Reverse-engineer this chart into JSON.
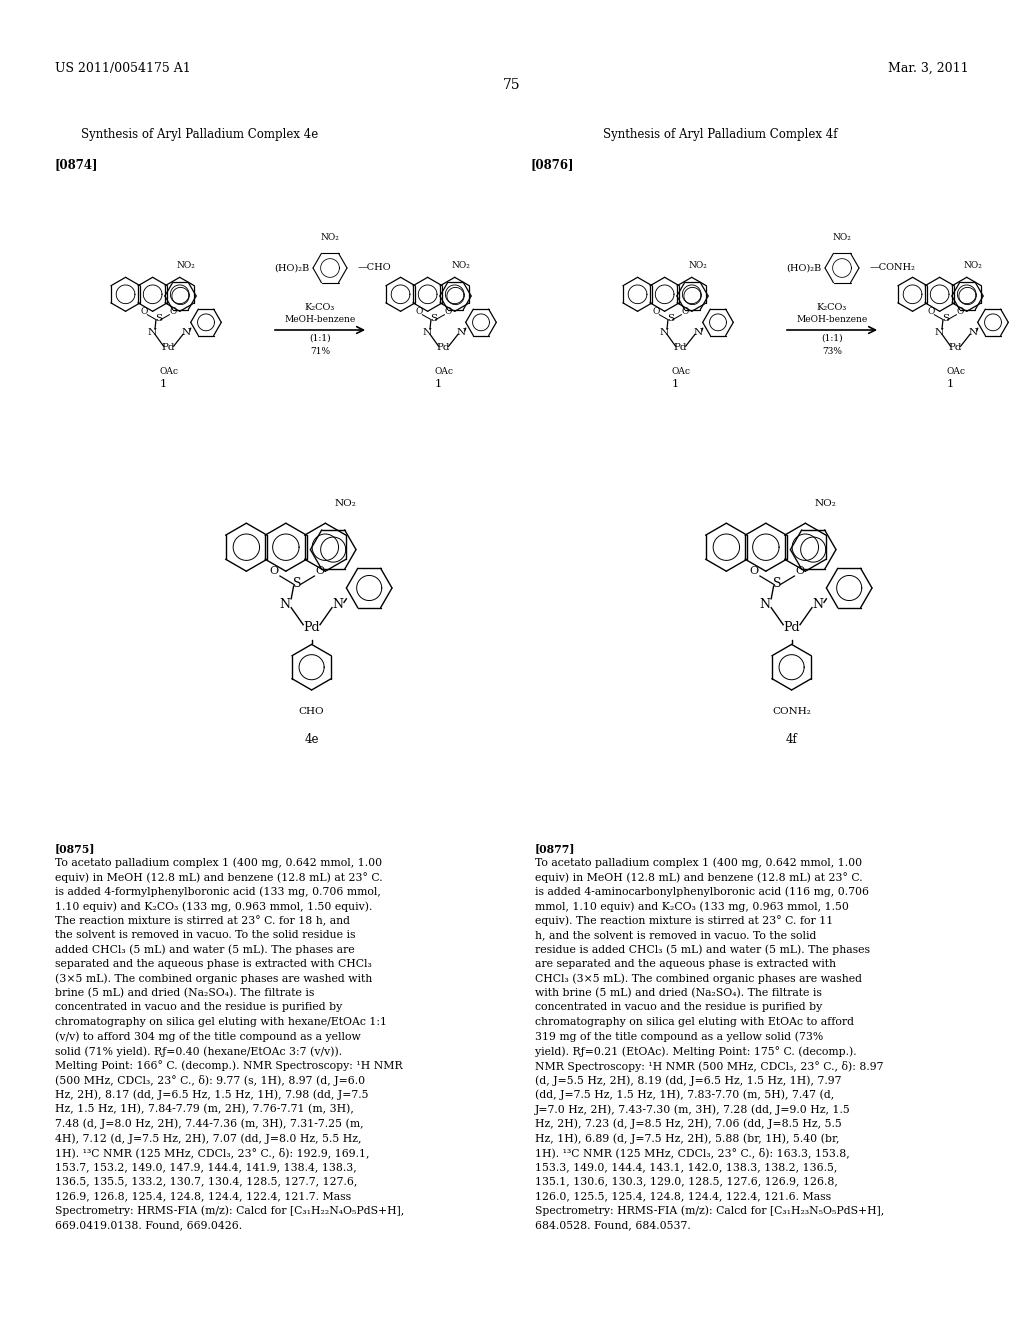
{
  "bg_color": "#ffffff",
  "fig_width": 10.24,
  "fig_height": 13.2,
  "dpi": 100,
  "header_left": "US 2011/0054175 A1",
  "header_right": "Mar. 3, 2011",
  "page_number": "75",
  "section_left_title": "Synthesis of Aryl Palladium Complex 4e",
  "section_right_title": "Synthesis of Aryl Palladium Complex 4f",
  "para_left_label": "[0874]",
  "para_right_label": "[0876]",
  "product_left_label": "4e",
  "product_left_sub": "CHO",
  "product_right_label": "4f",
  "product_right_sub": "CONH₂",
  "para0875_bold": "[0875]",
  "para0875_text": "To acetato palladium complex 1 (400 mg, 0.642 mmol, 1.00 equiv) in MeOH (12.8 mL) and benzene (12.8 mL) at 23° C. is added 4-formylphenylboronic acid (133 mg, 0.706 mmol, 1.10 equiv) and K₂CO₃ (133 mg, 0.963 mmol, 1.50 equiv). The reaction mixture is stirred at 23° C. for 18 h, and the solvent is removed in vacuo. To the solid residue is added CHCl₃ (5 mL) and water (5 mL). The phases are separated and the aqueous phase is extracted with CHCl₃ (3×5 mL). The combined organic phases are washed with brine (5 mL) and dried (Na₂SO₄). The filtrate is concentrated in vacuo and the residue is purified by chromatography on silica gel eluting with hexane/EtOAc 1:1 (v/v) to afford 304 mg of the title compound as a yellow solid (71% yield). Rƒ=0.40 (hexane/EtOAc 3:7 (v/v)). Melting Point: 166° C. (decomp.). NMR Spectroscopy: ¹H NMR (500 MHz, CDCl₃, 23° C., δ): 9.77 (s, 1H), 8.97 (d, J=6.0 Hz, 2H), 8.17 (dd, J=6.5 Hz, 1.5 Hz, 1H), 7.98 (dd, J=7.5 Hz, 1.5 Hz, 1H), 7.84-7.79 (m, 2H), 7.76-7.71 (m, 3H), 7.48 (d, J=8.0 Hz, 2H), 7.44-7.36 (m, 3H), 7.31-7.25 (m, 4H), 7.12 (d, J=7.5 Hz, 2H), 7.07 (dd, J=8.0 Hz, 5.5 Hz, 1H). ¹³C NMR (125 MHz, CDCl₃, 23° C., δ): 192.9, 169.1, 153.7, 153.2, 149.0, 147.9, 144.4, 141.9, 138.4, 138.3, 136.5, 135.5, 133.2, 130.7, 130.4, 128.5, 127.7, 127.6, 126.9, 126.8, 125.4, 124.8, 124.4, 122.4, 121.7. Mass Spectrometry: HRMS-FIA (m/z): Calcd for [C₃₁H₂₂N₄O₅PdS+H], 669.0419.0138. Found, 669.0426.",
  "para0877_bold": "[0877]",
  "para0877_text": "To acetato palladium complex 1 (400 mg, 0.642 mmol, 1.00 equiv) in MeOH (12.8 mL) and benzene (12.8 mL) at 23° C. is added 4-aminocarbonylphenylboronic acid (116 mg, 0.706 mmol, 1.10 equiv) and K₂CO₃ (133 mg, 0.963 mmol, 1.50 equiv). The reaction mixture is stirred at 23° C. for 11 h, and the solvent is removed in vacuo. To the solid residue is added CHCl₃ (5 mL) and water (5 mL). The phases are separated and the aqueous phase is extracted with CHCl₃ (3×5 mL). The combined organic phases are washed with brine (5 mL) and dried (Na₂SO₄). The filtrate is concentrated in vacuo and the residue is purified by chromatography on silica gel eluting with EtOAc to afford 319 mg of the title compound as a yellow solid (73% yield). Rƒ=0.21 (EtOAc). Melting Point: 175° C. (decomp.). NMR Spectroscopy: ¹H NMR (500 MHz, CDCl₃, 23° C., δ): 8.97 (d, J=5.5 Hz, 2H), 8.19 (dd, J=6.5 Hz, 1.5 Hz, 1H), 7.97 (dd, J=7.5 Hz, 1.5 Hz, 1H), 7.83-7.70 (m, 5H), 7.47 (d, J=7.0 Hz, 2H), 7.43-7.30 (m, 3H), 7.28 (dd, J=9.0 Hz, 1.5 Hz, 2H), 7.23 (d, J=8.5 Hz, 2H), 7.06 (dd, J=8.5 Hz, 5.5 Hz, 1H), 6.89 (d, J=7.5 Hz, 2H), 5.88 (br, 1H), 5.40 (br, 1H). ¹³C NMR (125 MHz, CDCl₃, 23° C., δ): 163.3, 153.8, 153.3, 149.0, 144.4, 143.1, 142.0, 138.3, 138.2, 136.5, 135.1, 130.6, 130.3, 129.0, 128.5, 127.6, 126.9, 126.8, 126.0, 125.5, 125.4, 124.8, 124.4, 122.4, 121.6. Mass Spectrometry: HRMS-FIA (m/z): Calcd for [C₃₁H₂₃N₅O₅PdS+H], 684.0528. Found, 684.0537."
}
